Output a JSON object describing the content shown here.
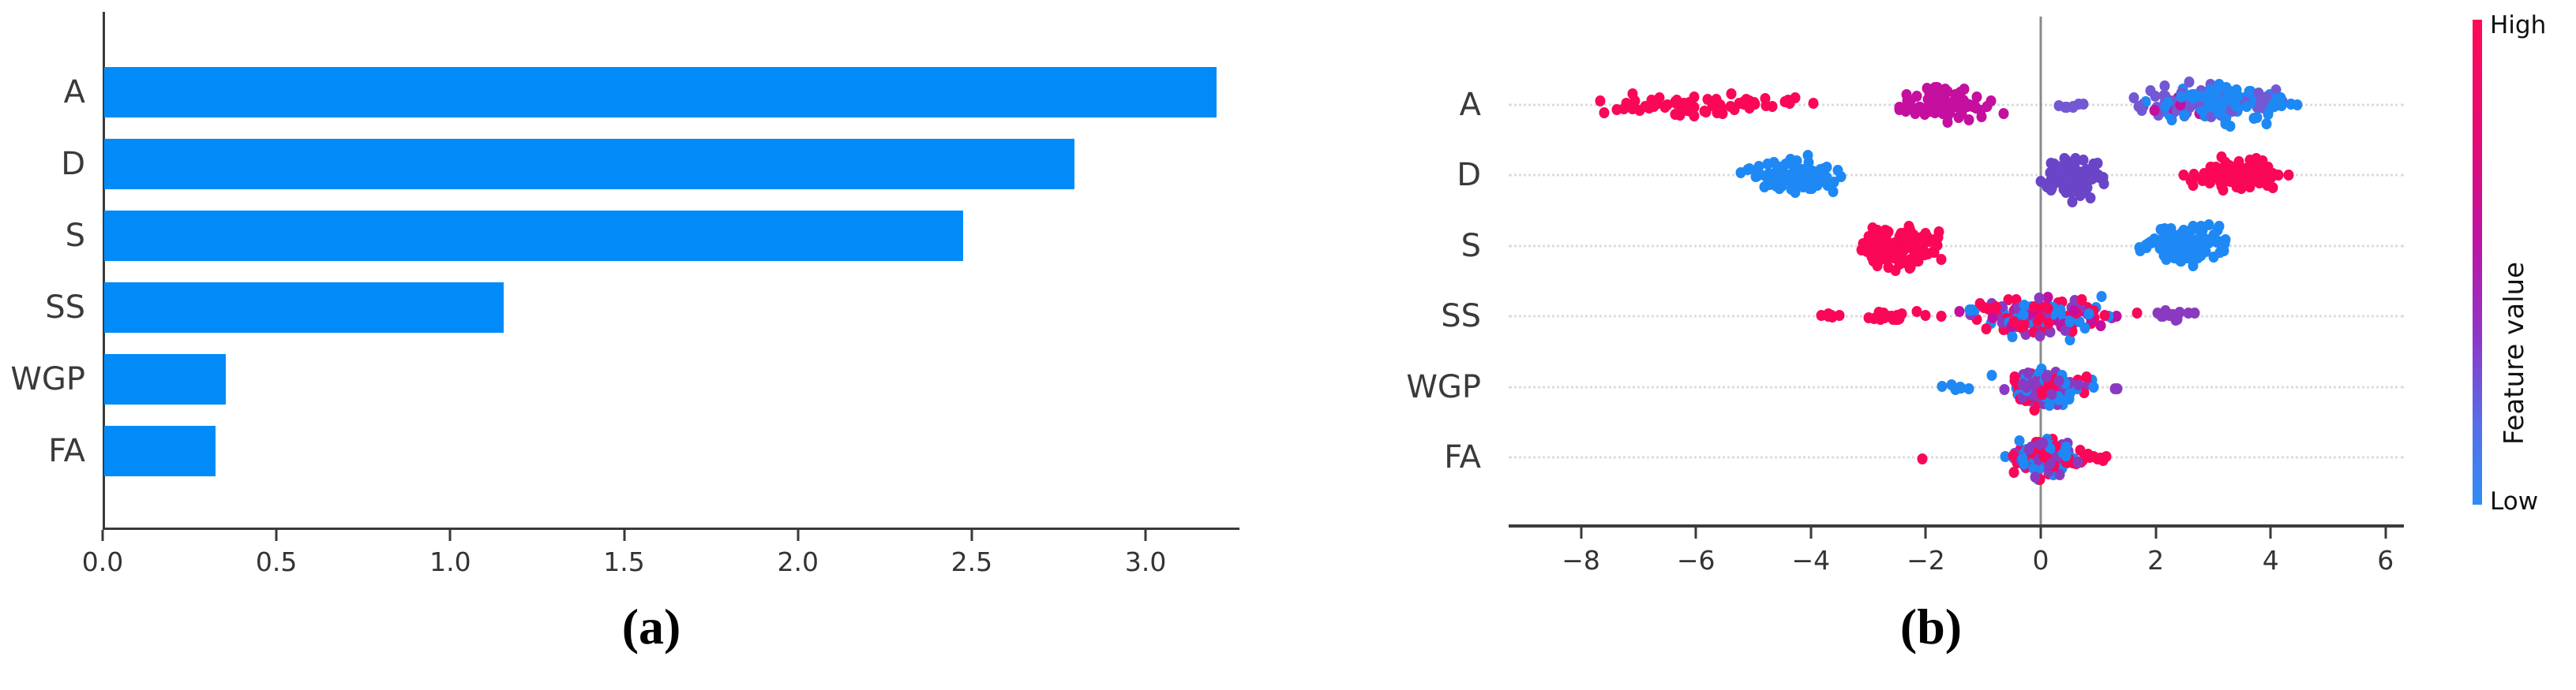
{
  "figure": {
    "caption_a": "(a)",
    "caption_b": "(b)"
  },
  "chart_data": [
    {
      "type": "bar",
      "orientation": "horizontal",
      "title": "",
      "xlabel": "",
      "ylabel": "",
      "categories": [
        "A",
        "D",
        "S",
        "SS",
        "WGP",
        "FA"
      ],
      "values": [
        3.2,
        2.79,
        2.47,
        1.15,
        0.35,
        0.32
      ],
      "bar_color": "#008bf8",
      "xlim": [
        0,
        3.27
      ],
      "xticks": [
        "0.0",
        "0.5",
        "1.0",
        "1.5",
        "2.0",
        "2.5",
        "3.0"
      ],
      "xtick_values": [
        0,
        0.5,
        1.0,
        1.5,
        2.0,
        2.5,
        3.0
      ],
      "grid": false
    },
    {
      "type": "scatter",
      "subtype": "shap-beeswarm",
      "title": "",
      "categories": [
        "A",
        "D",
        "S",
        "SS",
        "WGP",
        "FA"
      ],
      "xlim": [
        -9.3,
        6.3
      ],
      "xticks": [
        "−8",
        "−6",
        "−4",
        "−2",
        "0",
        "2",
        "4",
        "6"
      ],
      "xtick_values": [
        -8,
        -6,
        -4,
        -2,
        0,
        2,
        4,
        6
      ],
      "zero_line_color": "#8a8a8a",
      "guide_line_color": "#dcdcdc",
      "colors": {
        "red": "#fb0757",
        "magenta": "#c40f9f",
        "violet": "#7358d4",
        "purple": "#6a45c8",
        "plum": "#8a3ac1",
        "blue": "#1e88f5"
      },
      "clusters": [
        {
          "row": 0,
          "center": -6.1,
          "hw": 1.55,
          "range": [
            -8.6,
            -3.7
          ],
          "n": 60,
          "jmax": 22,
          "palette": {
            "red": 1
          }
        },
        {
          "row": 0,
          "center": -1.6,
          "hw": 0.72,
          "range": [
            -2.75,
            -0.45
          ],
          "n": 80,
          "jmax": 30,
          "palette": {
            "magenta": 1
          }
        },
        {
          "row": 0,
          "center": 0.55,
          "hw": 0.3,
          "range": [
            0.15,
            1.05
          ],
          "n": 7,
          "jmax": 5,
          "palette": {
            "violet": 1
          }
        },
        {
          "row": 0,
          "center": 2.4,
          "hw": 0.75,
          "range": [
            1.4,
            3.6
          ],
          "n": 65,
          "jmax": 34,
          "palette": {
            "violet": 0.72,
            "magenta": 0.12,
            "blue": 0.16
          }
        },
        {
          "row": 0,
          "center": 3.3,
          "hw": 0.95,
          "range": [
            1.7,
            5.85
          ],
          "n": 100,
          "jmax": 38,
          "palette": {
            "blue": 0.8,
            "violet": 0.2
          }
        },
        {
          "row": 1,
          "center": -4.25,
          "hw": 0.72,
          "range": [
            -5.6,
            -2.95
          ],
          "n": 95,
          "jmax": 34,
          "palette": {
            "blue": 1
          }
        },
        {
          "row": 1,
          "center": 0.55,
          "hw": 0.45,
          "range": [
            -0.05,
            1.35
          ],
          "n": 95,
          "jmax": 42,
          "palette": {
            "purple": 1
          }
        },
        {
          "row": 1,
          "center": 3.5,
          "hw": 0.68,
          "range": [
            2.3,
            4.85
          ],
          "n": 95,
          "jmax": 30,
          "palette": {
            "red": 1
          }
        },
        {
          "row": 2,
          "center": -2.45,
          "hw": 0.58,
          "range": [
            -3.5,
            -1.45
          ],
          "n": 115,
          "jmax": 46,
          "palette": {
            "red": 1
          }
        },
        {
          "row": 2,
          "center": 2.55,
          "hw": 0.68,
          "range": [
            1.55,
            4.05
          ],
          "n": 105,
          "jmax": 40,
          "palette": {
            "blue": 1
          }
        },
        {
          "row": 3,
          "center": -2.8,
          "hw": 0.9,
          "range": [
            -4.25,
            -1.55
          ],
          "n": 28,
          "jmax": 9,
          "palette": {
            "red": 1
          }
        },
        {
          "row": 3,
          "center": 0.1,
          "hw": 1.05,
          "range": [
            -1.7,
            2.0
          ],
          "n": 165,
          "jmax": 40,
          "palette": {
            "blue": 0.32,
            "red": 0.34,
            "plum": 0.19,
            "magenta": 0.15
          }
        },
        {
          "row": 3,
          "center": 2.25,
          "hw": 0.4,
          "range": [
            1.9,
            2.72
          ],
          "n": 14,
          "jmax": 10,
          "palette": {
            "plum": 1
          }
        },
        {
          "row": 4,
          "center": -1.5,
          "hw": 0.28,
          "range": [
            -1.85,
            -1.05
          ],
          "n": 7,
          "jmax": 5,
          "palette": {
            "blue": 1
          }
        },
        {
          "row": 4,
          "center": 0.05,
          "hw": 0.6,
          "range": [
            -1.2,
            1.1
          ],
          "n": 125,
          "jmax": 36,
          "palette": {
            "red": 0.38,
            "plum": 0.27,
            "blue": 0.35
          }
        },
        {
          "row": 4,
          "center": 1.3,
          "hw": 0.08,
          "range": [
            1.2,
            1.4
          ],
          "n": 2,
          "jmax": 3,
          "palette": {
            "plum": 1
          }
        },
        {
          "row": 5,
          "center": -2.05,
          "hw": 0.03,
          "range": [
            -2.1,
            -2.0
          ],
          "n": 1,
          "jmax": 1,
          "palette": {
            "red": 1
          }
        },
        {
          "row": 5,
          "center": 0.1,
          "hw": 0.52,
          "range": [
            -1.2,
            1.2
          ],
          "n": 125,
          "jmax": 36,
          "palette": {
            "blue": 0.37,
            "red": 0.34,
            "plum": 0.29
          }
        },
        {
          "row": 5,
          "center": 0.95,
          "hw": 0.2,
          "range": [
            0.65,
            1.25
          ],
          "n": 9,
          "jmax": 7,
          "palette": {
            "red": 1
          }
        }
      ],
      "colorbar": {
        "high_label": "High",
        "low_label": "Low",
        "title": "Feature value",
        "top_color": "#ff0a55",
        "bottom_color": "#2f8df5"
      }
    }
  ]
}
